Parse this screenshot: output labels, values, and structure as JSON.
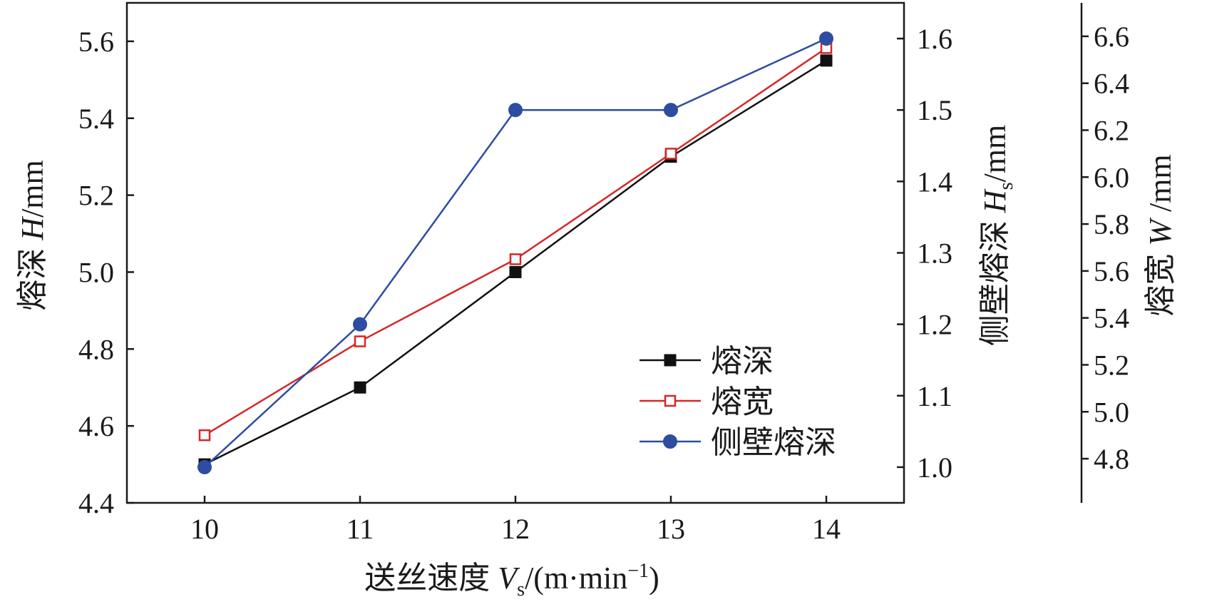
{
  "chart_data": {
    "type": "line",
    "x": [
      10,
      11,
      12,
      13,
      14
    ],
    "x_ticks": [
      "10",
      "11",
      "12",
      "13",
      "14"
    ],
    "xlim": [
      9.5,
      14.5
    ],
    "xlabel": {
      "main": "送丝速度 ",
      "var": "V",
      "sub": "s",
      "unit_open": "/(m·min",
      "sup": "−1",
      "unit_close": ")"
    },
    "axes": {
      "left": {
        "label": {
          "main": "熔深 ",
          "var": "H",
          "sub": "",
          "unit": "/mm"
        },
        "ylim": [
          4.4,
          5.7
        ],
        "ticks": [
          "4.4",
          "4.6",
          "4.8",
          "5.0",
          "5.2",
          "5.4",
          "5.6"
        ],
        "tick_values": [
          4.4,
          4.6,
          4.8,
          5.0,
          5.2,
          5.4,
          5.6
        ]
      },
      "right1": {
        "label": {
          "main": "侧壁熔深 ",
          "var": "H",
          "sub": "s",
          "unit": "/mm"
        },
        "ylim": [
          0.95,
          1.65
        ],
        "ticks": [
          "1.0",
          "1.1",
          "1.2",
          "1.3",
          "1.4",
          "1.5",
          "1.6"
        ],
        "tick_values": [
          1.0,
          1.1,
          1.2,
          1.3,
          1.4,
          1.5,
          1.6
        ]
      },
      "right2": {
        "label": {
          "main": "熔宽 ",
          "var": "W",
          "sub": "",
          "unit": " /mm"
        },
        "ylim": [
          4.7,
          6.7
        ],
        "ticks": [
          "4.8",
          "5.0",
          "5.2",
          "5.4",
          "5.6",
          "5.8",
          "6.0",
          "6.2",
          "6.4",
          "6.6"
        ],
        "tick_values": [
          4.8,
          5.0,
          5.2,
          5.4,
          5.6,
          5.8,
          6.0,
          6.2,
          6.4,
          6.6
        ]
      }
    },
    "series": [
      {
        "name": "熔深",
        "axis": "left",
        "values": [
          4.5,
          4.7,
          5.0,
          5.3,
          5.55
        ],
        "color": "#111111",
        "marker": "square-filled"
      },
      {
        "name": "熔宽",
        "axis": "right2",
        "values": [
          4.9,
          5.3,
          5.65,
          6.1,
          6.55
        ],
        "color": "#d62728",
        "marker": "square-open"
      },
      {
        "name": "侧壁熔深",
        "axis": "right1",
        "values": [
          1.0,
          1.2,
          1.5,
          1.5,
          1.6
        ],
        "color": "#2e4da0",
        "marker": "circle-filled"
      }
    ],
    "legend_position": "lower-right",
    "grid": false
  }
}
